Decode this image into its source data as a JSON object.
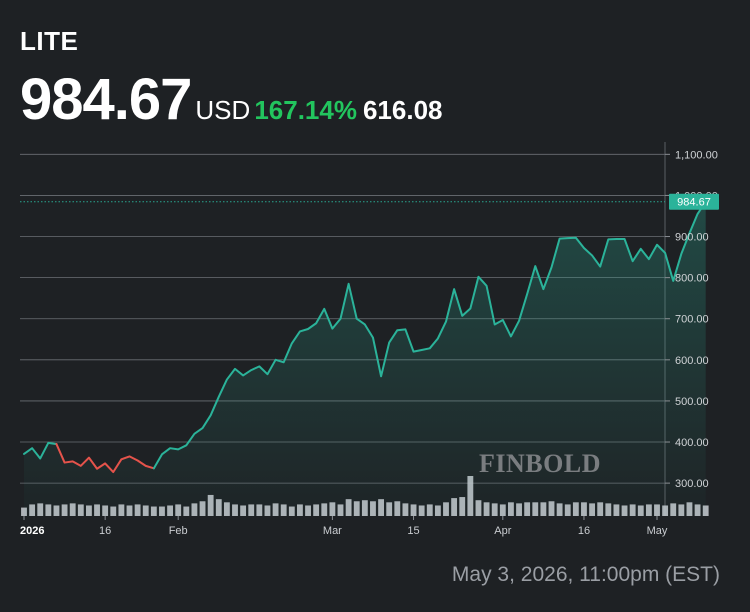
{
  "header": {
    "ticker": "LITE",
    "price": "984.67",
    "currency": "USD",
    "change_pct": "167.14%",
    "change_abs": "616.08"
  },
  "watermark": "FINBOLD",
  "timestamp": "May 3, 2026, 11:00pm (EST)",
  "colors": {
    "background": "#1e2124",
    "up_line": "#2bb39a",
    "down_line": "#e5534b",
    "positive_change": "#22c55e",
    "last_price_badge": "#2bb39a",
    "volume_bar": "#c9cdd2"
  },
  "chart_data": {
    "type": "line",
    "y_axis": {
      "position": "right",
      "ticks": [
        300,
        400,
        500,
        600,
        700,
        800,
        900,
        1000,
        1100
      ],
      "tick_labels": [
        "300.00",
        "400.00",
        "500.00",
        "600.00",
        "700.00",
        "800.00",
        "900.00",
        "1,000.00",
        "1,100.00"
      ],
      "ylim": [
        220,
        1130
      ]
    },
    "x_axis": {
      "ticks": [
        {
          "label": "2026",
          "index": 0,
          "bold": true
        },
        {
          "label": "16",
          "index": 10,
          "bold": false
        },
        {
          "label": "Feb",
          "index": 19,
          "bold": false
        },
        {
          "label": "Mar",
          "index": 38,
          "bold": false
        },
        {
          "label": "15",
          "index": 48,
          "bold": false
        },
        {
          "label": "Apr",
          "index": 59,
          "bold": false
        },
        {
          "label": "16",
          "index": 69,
          "bold": false
        },
        {
          "label": "May",
          "index": 78,
          "bold": false
        }
      ],
      "index_range": [
        0,
        78
      ]
    },
    "last_price": {
      "value": 984.67,
      "label": "984.67"
    },
    "series": [
      {
        "values": [
          371,
          385,
          360,
          398,
          395,
          350,
          353,
          342,
          362,
          335,
          348,
          327,
          358,
          365,
          355,
          342,
          336,
          370,
          385,
          382,
          392,
          420,
          434,
          465,
          510,
          552,
          578,
          562,
          575,
          584,
          565,
          600,
          594,
          640,
          669,
          675,
          689,
          724,
          676,
          700,
          785,
          700,
          686,
          654,
          560,
          642,
          672,
          674,
          620,
          624,
          628,
          652,
          693,
          772,
          707,
          725,
          802,
          780,
          686,
          697,
          657,
          695,
          760,
          828,
          772,
          825,
          895,
          896,
          897,
          872,
          854,
          827,
          893,
          894,
          894,
          840,
          870,
          845,
          880,
          860,
          792,
          858,
          908,
          955,
          984.67
        ],
        "segments": [
          {
            "from": 0,
            "to": 4,
            "trend": "up"
          },
          {
            "from": 4,
            "to": 16,
            "trend": "down"
          },
          {
            "from": 16,
            "to": 84,
            "trend": "up"
          }
        ]
      }
    ],
    "volume": [
      8,
      11,
      12,
      11,
      10,
      11,
      12,
      11,
      10,
      11,
      10,
      9,
      11,
      10,
      11,
      10,
      9,
      9,
      10,
      11,
      9,
      12,
      14,
      20,
      16,
      13,
      11,
      10,
      11,
      11,
      10,
      12,
      11,
      9,
      11,
      10,
      11,
      12,
      13,
      11,
      16,
      14,
      15,
      14,
      16,
      13,
      14,
      12,
      11,
      10,
      11,
      10,
      13,
      17,
      18,
      38,
      15,
      13,
      12,
      11,
      13,
      12,
      13,
      13,
      13,
      14,
      12,
      11,
      13,
      13,
      12,
      13,
      12,
      11,
      10,
      11,
      10,
      11,
      11,
      10,
      12,
      11,
      13,
      11,
      10
    ]
  }
}
